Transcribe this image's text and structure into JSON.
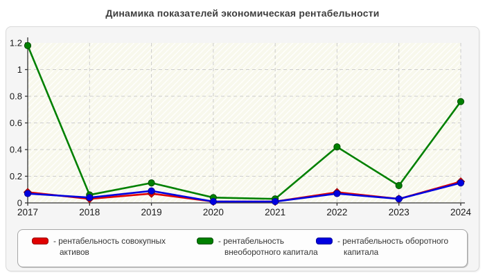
{
  "title": "Динамика показателей экономическая рентабельности",
  "chart_data": {
    "type": "line",
    "categories": [
      "2017",
      "2018",
      "2019",
      "2020",
      "2021",
      "2022",
      "2023",
      "2024"
    ],
    "series": [
      {
        "id": "total-assets",
        "name": "рентабельность совокупных активов",
        "legend_label": "- рентабельность совокупных активов",
        "color": "#e00000",
        "edge": "#990000",
        "marker": "diamond",
        "values": [
          0.08,
          0.03,
          0.07,
          0.01,
          0.01,
          0.08,
          0.03,
          0.16
        ]
      },
      {
        "id": "fixed-capital",
        "name": "рентабельность внеоборотного капитала",
        "legend_label": "- рентабельность внеоборотного капитала",
        "color": "#008000",
        "edge": "#004d00",
        "marker": "circle",
        "values": [
          1.18,
          0.06,
          0.15,
          0.04,
          0.03,
          0.42,
          0.13,
          0.76
        ]
      },
      {
        "id": "working-capital",
        "name": "рентабельность оборотного капитала",
        "legend_label": "- рентабельность оборотного капитала",
        "color": "#0000e0",
        "edge": "#000099",
        "marker": "circle",
        "values": [
          0.07,
          0.04,
          0.09,
          0.01,
          0.01,
          0.07,
          0.03,
          0.15
        ]
      }
    ],
    "yticks": [
      0,
      0.2,
      0.4,
      0.6,
      0.8,
      1,
      1.2
    ],
    "ylim": [
      0,
      1.2
    ],
    "xlabel": "",
    "ylabel": "",
    "grid": true,
    "legend_position": "bottom"
  },
  "colors": {
    "grid": "#cccccc",
    "axis": "#333333",
    "plot_bg": "#f8f8ec",
    "hatch_line": "#ffffff",
    "panel_bg": "#f5f5f5",
    "title_color": "#3d3d3d"
  }
}
